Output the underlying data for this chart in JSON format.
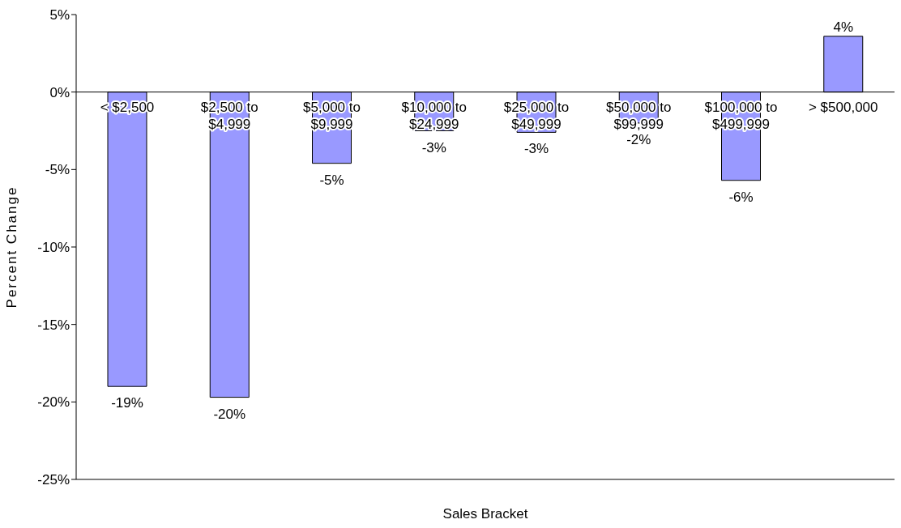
{
  "chart_data": {
    "type": "bar",
    "xlabel": "Sales Bracket",
    "ylabel": "Percent Change",
    "categories": [
      "< $2,500",
      "$2,500 to $4,999",
      "$5,000 to $9,999",
      "$10,000 to $24,999",
      "$25,000 to $49,999",
      "$50,000 to $99,999",
      "$100,000 to $499,999",
      "> $500,000"
    ],
    "values": [
      -19,
      -19.7,
      -4.6,
      -2.5,
      -2.6,
      -2,
      -5.7,
      3.6
    ],
    "value_labels": [
      "-19%",
      "-20%",
      "-5%",
      "-3%",
      "-3%",
      "-2%",
      "-6%",
      "4%"
    ],
    "color": "#9999ff",
    "ylim": [
      -25,
      5
    ],
    "yticks": [
      {
        "value": -25,
        "label": "-25%"
      },
      {
        "value": -20,
        "label": "-20%"
      },
      {
        "value": -15,
        "label": "-15%"
      },
      {
        "value": -10,
        "label": "-10%"
      },
      {
        "value": -5,
        "label": "-5%"
      },
      {
        "value": 0,
        "label": "0%"
      },
      {
        "value": 5,
        "label": "5%"
      }
    ],
    "grid": false,
    "legend": false
  }
}
